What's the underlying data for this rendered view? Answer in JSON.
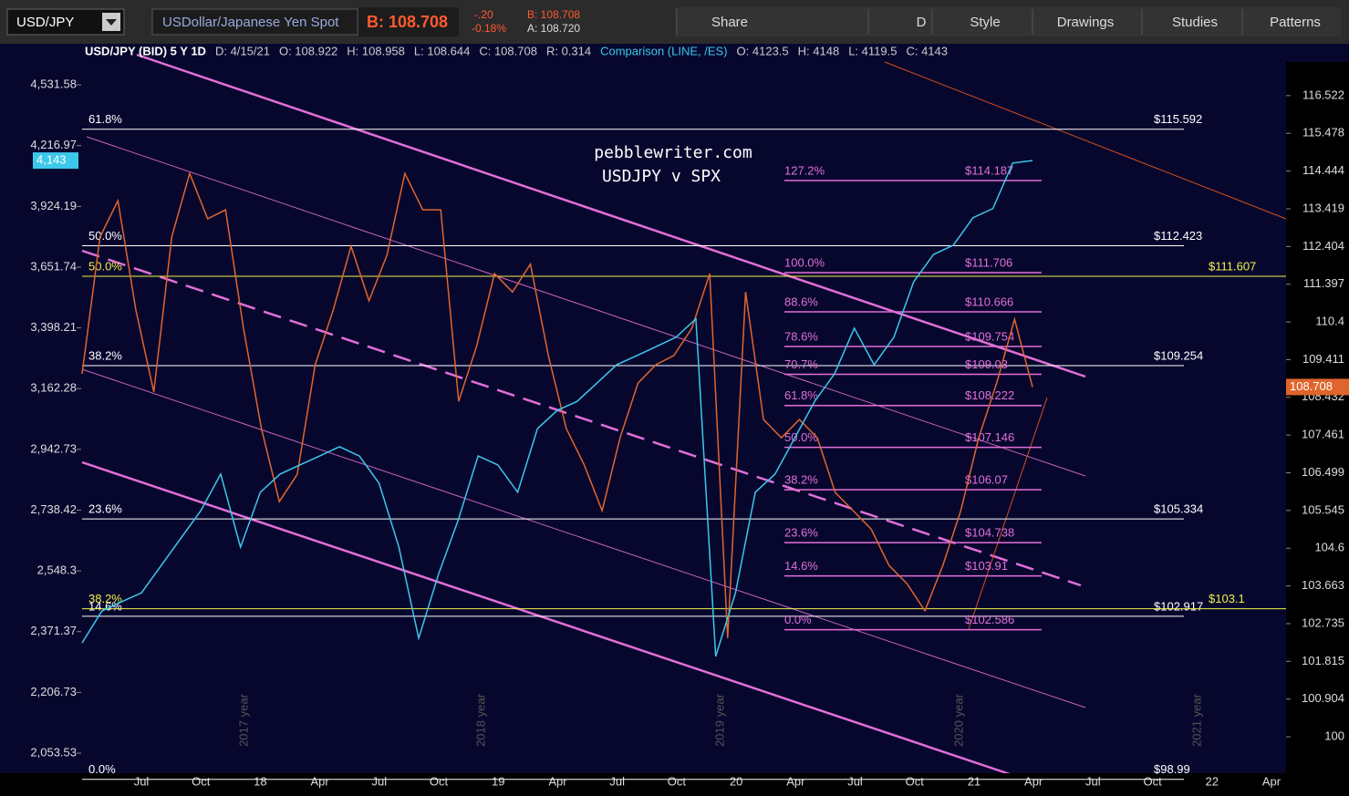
{
  "toolbar": {
    "symbol": "USD/JPY",
    "description": "USDollar/Japanese Yen Spot",
    "bid": "B: 108.708",
    "change": "-.20",
    "change_pct": "-0.18%",
    "bid_small": "B: 108.708",
    "ask": "A: 108.720",
    "buttons": [
      "Share",
      "D",
      "Style",
      "Drawings",
      "Studies",
      "Patterns"
    ]
  },
  "header": {
    "items": [
      "USD/JPY (BID) 5 Y 1D",
      "D: 4/15/21",
      "O: 108.922",
      "H: 108.958",
      "L: 108.644",
      "C: 108.708",
      "R: 0.314"
    ],
    "comparison": [
      "Comparison (LINE, /ES)",
      "O: 4123.5",
      "H: 4148",
      "L: 4119.5",
      "C: 4143"
    ]
  },
  "chart_data": {
    "type": "line",
    "log_scale": true,
    "annotations": [
      "pebblewriter.com",
      "USDJPY v SPX"
    ],
    "xticks": [
      "Jul",
      "Oct",
      "18",
      "Apr",
      "Jul",
      "Oct",
      "19",
      "Apr",
      "Jul",
      "Oct",
      "20",
      "Apr",
      "Jul",
      "Oct",
      "21",
      "Apr",
      "Jul",
      "Oct",
      "22",
      "Apr"
    ],
    "year_labels": [
      "2017 year",
      "2018 year",
      "2019 year",
      "2020 year",
      "2021 year"
    ],
    "ylim": [
      1983.8,
      4656
    ],
    "yticks": [
      {
        "value": 4531.58,
        "label": "4,531.58"
      },
      {
        "value": 4216.97,
        "label": "4,216.97"
      },
      {
        "value": 3924.19,
        "label": "3,924.19"
      },
      {
        "value": 3651.74,
        "label": "3,651.74"
      },
      {
        "value": 3398.21,
        "label": "3,398.21"
      },
      {
        "value": 3162.28,
        "label": "3,162.28"
      },
      {
        "value": 2942.73,
        "label": "2,942.73"
      },
      {
        "value": 2738.42,
        "label": "2,738.42"
      },
      {
        "value": 2548.3,
        "label": "2,548.3"
      },
      {
        "value": 2371.37,
        "label": "2,371.37"
      },
      {
        "value": 2206.73,
        "label": "2,206.73"
      },
      {
        "value": 2053.53,
        "label": "2,053.53"
      }
    ],
    "y2lim": [
      98.92,
      117.46
    ],
    "y2ticks": [
      116.522,
      115.478,
      114.444,
      113.419,
      112.404,
      111.397,
      110.4,
      109.411,
      108.432,
      107.461,
      106.499,
      105.545,
      104.6,
      103.663,
      102.735,
      101.815,
      100.904,
      100
    ],
    "series": [
      {
        "name": "USD/JPY",
        "color": "#e0652c",
        "axis": "y2",
        "values": [
          109.04,
          112.66,
          113.64,
          110.71,
          108.57,
          112.66,
          114.38,
          113.15,
          113.39,
          110.23,
          107.63,
          105.77,
          106.46,
          109.28,
          110.71,
          112.41,
          110.96,
          112.17,
          114.38,
          113.39,
          113.39,
          108.33,
          109.76,
          111.68,
          111.19,
          111.93,
          109.52,
          107.63,
          106.7,
          105.54,
          107.39,
          108.8,
          109.28,
          109.52,
          110.23,
          111.68,
          102.38,
          111.19,
          107.86,
          107.39,
          107.86,
          107.39,
          106.0,
          105.54,
          105.08,
          104.17,
          103.72,
          103.05,
          104.17,
          105.54,
          107.39,
          108.8,
          110.47,
          108.7
        ],
        "last_label": "108.708"
      },
      {
        "name": "/ES",
        "color": "#3cc8ea",
        "values": [
          2340,
          2430,
          2457,
          2483,
          2565,
          2650,
          2737,
          2858,
          2621,
          2797,
          2858,
          2889,
          2920,
          2952,
          2920,
          2827,
          2621,
          2353,
          2538,
          2707,
          2920,
          2889,
          2797,
          3016,
          3082,
          3115,
          3183,
          3253,
          3288,
          3324,
          3361,
          3435,
          2303,
          2483,
          2797,
          2858,
          2984,
          3115,
          3218,
          3397,
          3253,
          3361,
          3589,
          3707,
          3748,
          3872,
          3914,
          4131,
          4143
        ],
        "last_label": "4,143"
      }
    ],
    "fib_white": [
      {
        "pct": "61.8%",
        "value": 115.592,
        "label": "$115.592"
      },
      {
        "pct": "50.0%",
        "value": 112.423,
        "label": "$112.423"
      },
      {
        "pct": "38.2%",
        "value": 109.254,
        "label": "$109.254"
      },
      {
        "pct": "23.6%",
        "value": 105.334,
        "label": "$105.334"
      },
      {
        "pct": "14.6%",
        "value": 102.917,
        "label": "$102.917"
      },
      {
        "pct": "0.0%",
        "value": 98.99,
        "label": "$98.99"
      }
    ],
    "fib_yellow": [
      {
        "pct": "50.0%",
        "value": 111.607,
        "label": "$111.607"
      },
      {
        "pct": "38.2%",
        "value": 103.1,
        "label": "$103.1"
      }
    ],
    "fib_pink": [
      {
        "pct": "127.2%",
        "value": 114.187,
        "label": "$114.187"
      },
      {
        "pct": "100.0%",
        "value": 111.706,
        "label": "$111.706"
      },
      {
        "pct": "88.6%",
        "value": 110.666,
        "label": "$110.666"
      },
      {
        "pct": "78.6%",
        "value": 109.754,
        "label": "$109.754"
      },
      {
        "pct": "70.7%",
        "value": 109.03,
        "label": "$109.03"
      },
      {
        "pct": "61.8%",
        "value": 108.222,
        "label": "$108.222"
      },
      {
        "pct": "50.0%",
        "value": 107.146,
        "label": "$107.146"
      },
      {
        "pct": "38.2%",
        "value": 106.07,
        "label": "$106.07"
      },
      {
        "pct": "23.6%",
        "value": 104.738,
        "label": "$104.738"
      },
      {
        "pct": "14.6%",
        "value": 103.91,
        "label": "$103.91"
      },
      {
        "pct": "0.0%",
        "value": 102.586,
        "label": "$102.586"
      }
    ]
  }
}
